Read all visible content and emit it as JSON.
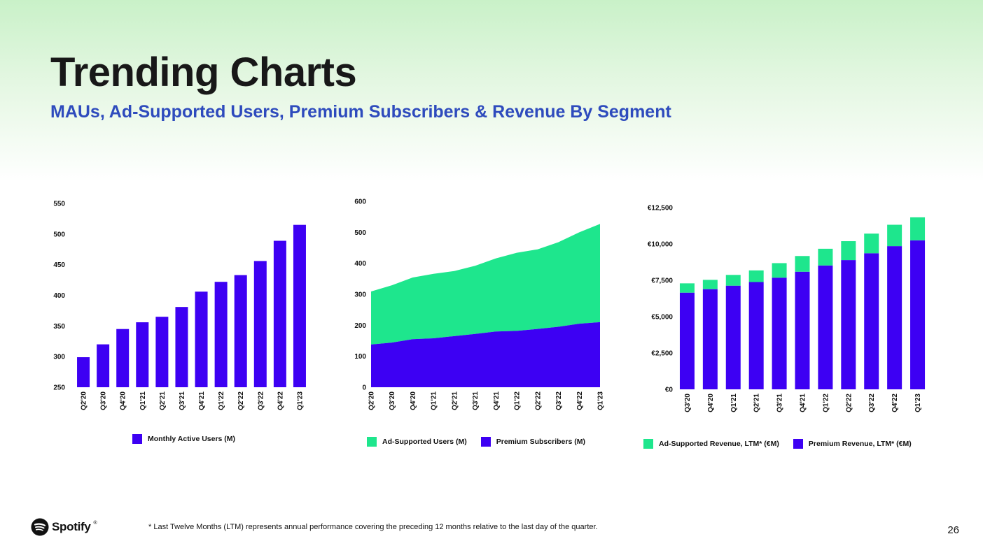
{
  "header": {
    "title": "Trending Charts",
    "subtitle": "MAUs, Ad-Supported Users, Premium Subscribers & Revenue By Segment"
  },
  "colors": {
    "purple": "#3d00f3",
    "green": "#1ee68d",
    "subtitle_blue": "#2e4bbd"
  },
  "chart_data": [
    {
      "type": "bar",
      "categories": [
        "Q2'20",
        "Q3'20",
        "Q4'20",
        "Q1'21",
        "Q2'21",
        "Q3'21",
        "Q4'21",
        "Q1'22",
        "Q2'22",
        "Q3'22",
        "Q4'22",
        "Q1'23"
      ],
      "series": [
        {
          "name": "Monthly Active Users (M)",
          "color": "#3d00f3",
          "values": [
            299,
            320,
            345,
            356,
            365,
            381,
            406,
            422,
            433,
            456,
            489,
            515
          ]
        }
      ],
      "ylim": [
        250,
        550
      ],
      "yticks": [
        "250",
        "300",
        "350",
        "400",
        "450",
        "500",
        "550"
      ],
      "ytick_values": [
        250,
        300,
        350,
        400,
        450,
        500,
        550
      ],
      "legend_position": "bottom"
    },
    {
      "type": "area",
      "stacked": true,
      "categories": [
        "Q2'20",
        "Q3'20",
        "Q4'20",
        "Q1'21",
        "Q2'21",
        "Q3'21",
        "Q4'21",
        "Q1'22",
        "Q2'22",
        "Q3'22",
        "Q4'22",
        "Q1'23"
      ],
      "series": [
        {
          "name": "Ad-Supported Users (M)",
          "color": "#1ee68d",
          "values": [
            171,
            185,
            199,
            208,
            210,
            220,
            236,
            252,
            257,
            273,
            295,
            317
          ]
        },
        {
          "name": "Premium Subscribers (M)",
          "color": "#3d00f3",
          "values": [
            138,
            144,
            155,
            158,
            165,
            172,
            180,
            182,
            188,
            195,
            205,
            210
          ]
        }
      ],
      "ylim": [
        0,
        600
      ],
      "yticks": [
        "0",
        "100",
        "200",
        "300",
        "400",
        "500",
        "600"
      ],
      "ytick_values": [
        0,
        100,
        200,
        300,
        400,
        500,
        600
      ],
      "legend_position": "bottom"
    },
    {
      "type": "bar",
      "stacked": true,
      "categories": [
        "Q3'20",
        "Q4'20",
        "Q1'21",
        "Q2'21",
        "Q3'21",
        "Q4'21",
        "Q1'22",
        "Q2'22",
        "Q3'22",
        "Q4'22",
        "Q1'23"
      ],
      "series": [
        {
          "name": "Premium Revenue, LTM* (€M)",
          "color": "#3d00f3",
          "values": [
            6650,
            6890,
            7130,
            7380,
            7680,
            8090,
            8520,
            8890,
            9360,
            9850,
            10250
          ]
        },
        {
          "name": "Ad-Supported Revenue, LTM* (€M)",
          "color": "#1ee68d",
          "values": [
            640,
            640,
            740,
            800,
            1000,
            1080,
            1150,
            1300,
            1350,
            1470,
            1580
          ]
        }
      ],
      "ylim": [
        0,
        12500
      ],
      "yticks": [
        "€0",
        "€2,500",
        "€5,000",
        "€7,500",
        "€10,000",
        "€12,500"
      ],
      "ytick_values": [
        0,
        2500,
        5000,
        7500,
        10000,
        12500
      ],
      "legend_order": [
        "Ad-Supported Revenue, LTM* (€M)",
        "Premium Revenue, LTM* (€M)"
      ],
      "legend_position": "bottom"
    }
  ],
  "footer": {
    "logo_text": "Spotify",
    "trademark": "®",
    "footnote": "* Last Twelve Months (LTM) represents annual performance covering the preceding 12 months relative to the last day of the quarter.",
    "page_number": "26"
  }
}
